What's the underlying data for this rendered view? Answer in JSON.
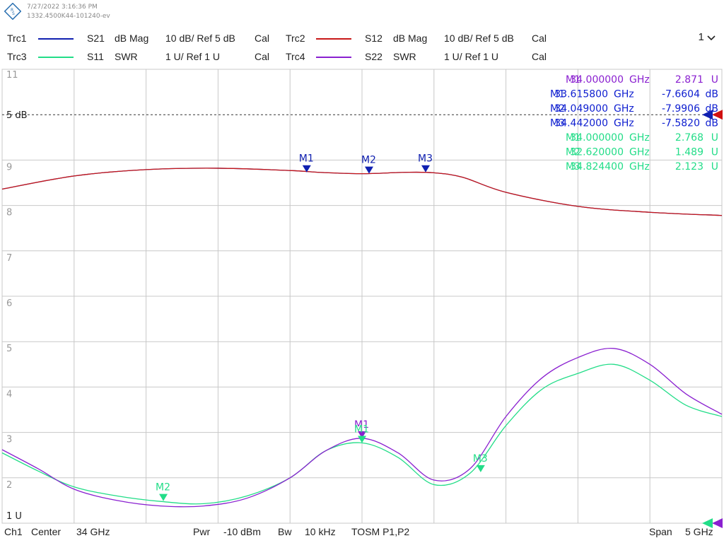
{
  "header": {
    "timestamp": "7/27/2022 3:16:36 PM",
    "instrument": "1332.4500K44-101240-ev",
    "logo_icon": "rohde-schwarz-logo"
  },
  "traces": [
    {
      "name": "Trc1",
      "param": "S21",
      "format": "dB Mag",
      "scale": "10 dB/ Ref 5 dB",
      "cal": "Cal",
      "color": "#1020b0"
    },
    {
      "name": "Trc2",
      "param": "S12",
      "format": "dB Mag",
      "scale": "10 dB/ Ref 5 dB",
      "cal": "Cal",
      "color": "#c81818"
    },
    {
      "name": "Trc3",
      "param": "S11",
      "format": "SWR",
      "scale": "1 U/ Ref 1 U",
      "cal": "Cal",
      "color": "#22dd88"
    },
    {
      "name": "Trc4",
      "param": "S22",
      "format": "SWR",
      "scale": "1 U/ Ref 1 U",
      "cal": "Cal",
      "color": "#8a20d0"
    }
  ],
  "window_selector": {
    "value": "1",
    "icon": "chevron-down-icon"
  },
  "markers_table": [
    {
      "label": "M1",
      "freq": "34.000000",
      "unit": "GHz",
      "value": "2.871",
      "vunit": "U",
      "color": "#8a20d0"
    },
    {
      "label": "M1",
      "freq": "33.615800",
      "unit": "GHz",
      "value": "-7.6604",
      "vunit": "dB",
      "color": "#1020d0"
    },
    {
      "label": "M2",
      "freq": "34.049000",
      "unit": "GHz",
      "value": "-7.9906",
      "vunit": "dB",
      "color": "#1020d0"
    },
    {
      "label": "M3",
      "freq": "34.442000",
      "unit": "GHz",
      "value": "-7.5820",
      "vunit": "dB",
      "color": "#1020d0"
    },
    {
      "label": "M1",
      "freq": "34.000000",
      "unit": "GHz",
      "value": "2.768",
      "vunit": "U",
      "color": "#22dd88"
    },
    {
      "label": "M2",
      "freq": "32.620000",
      "unit": "GHz",
      "value": "1.489",
      "vunit": "U",
      "color": "#22dd88"
    },
    {
      "label": "M3",
      "freq": "34.824400",
      "unit": "GHz",
      "value": "2.123",
      "vunit": "U",
      "color": "#22dd88"
    }
  ],
  "footer": {
    "channel": "Ch1",
    "center_label": "Center",
    "center_value": "34 GHz",
    "pwr_label": "Pwr",
    "pwr_value": "-10 dBm",
    "bw_label": "Bw",
    "bw_value": "10 kHz",
    "cal_type": "TOSM P1,P2",
    "span_label": "Span",
    "span_value": "5 GHz"
  },
  "chart_data": {
    "type": "line",
    "x_range_ghz": [
      31.5,
      36.5
    ],
    "y_tick_labels": [
      "11",
      "10",
      "9",
      "8",
      "7",
      "6",
      "5",
      "4",
      "3",
      "2",
      "1"
    ],
    "y_range": [
      1,
      11
    ],
    "ref_labels": {
      "db": "5 dB",
      "swr": "1 U"
    },
    "grid": true,
    "series": [
      {
        "name": "Trc1",
        "x": [
          31.5,
          32.0,
          32.5,
          33.0,
          33.5,
          33.7,
          34.0,
          34.3,
          34.5,
          34.7,
          35.0,
          35.5,
          36.0,
          36.5
        ],
        "y": [
          8.36,
          8.65,
          8.79,
          8.82,
          8.77,
          8.73,
          8.7,
          8.73,
          8.72,
          8.62,
          8.29,
          7.98,
          7.85,
          7.78
        ]
      },
      {
        "name": "Trc2",
        "x": [
          31.5,
          32.0,
          32.5,
          33.0,
          33.5,
          33.7,
          34.0,
          34.3,
          34.5,
          34.7,
          35.0,
          35.5,
          36.0,
          36.5
        ],
        "y": [
          8.36,
          8.65,
          8.79,
          8.82,
          8.77,
          8.73,
          8.7,
          8.73,
          8.72,
          8.62,
          8.29,
          7.98,
          7.85,
          7.78
        ]
      },
      {
        "name": "Trc3",
        "x": [
          31.5,
          31.75,
          32.0,
          32.3,
          32.6,
          32.9,
          33.2,
          33.5,
          33.75,
          34.0,
          34.25,
          34.5,
          34.75,
          35.0,
          35.25,
          35.5,
          35.75,
          36.0,
          36.25,
          36.5
        ],
        "y": [
          2.55,
          2.15,
          1.8,
          1.6,
          1.48,
          1.43,
          1.6,
          2.0,
          2.6,
          2.77,
          2.45,
          1.85,
          2.1,
          3.15,
          3.95,
          4.3,
          4.5,
          4.15,
          3.6,
          3.35
        ]
      },
      {
        "name": "Trc4",
        "x": [
          31.5,
          31.75,
          32.0,
          32.3,
          32.6,
          32.9,
          33.2,
          33.5,
          33.75,
          34.0,
          34.25,
          34.5,
          34.75,
          35.0,
          35.25,
          35.5,
          35.75,
          36.0,
          36.25,
          36.5
        ],
        "y": [
          2.62,
          2.2,
          1.75,
          1.5,
          1.38,
          1.38,
          1.55,
          2.0,
          2.6,
          2.87,
          2.55,
          1.95,
          2.2,
          3.35,
          4.2,
          4.65,
          4.85,
          4.5,
          3.85,
          3.4
        ]
      }
    ],
    "markers": [
      {
        "trace": "Trc1",
        "label": "M1",
        "x": 33.6158,
        "y": 8.73
      },
      {
        "trace": "Trc1",
        "label": "M2",
        "x": 34.049,
        "y": 8.7
      },
      {
        "trace": "Trc1",
        "label": "M3",
        "x": 34.442,
        "y": 8.73
      },
      {
        "trace": "Trc4",
        "label": "M1",
        "x": 34.0,
        "y": 2.871
      },
      {
        "trace": "Trc3",
        "label": "M1",
        "x": 34.0,
        "y": 2.768
      },
      {
        "trace": "Trc3",
        "label": "M2",
        "x": 32.62,
        "y": 1.489
      },
      {
        "trace": "Trc3",
        "label": "M3",
        "x": 34.8244,
        "y": 2.123
      }
    ]
  }
}
